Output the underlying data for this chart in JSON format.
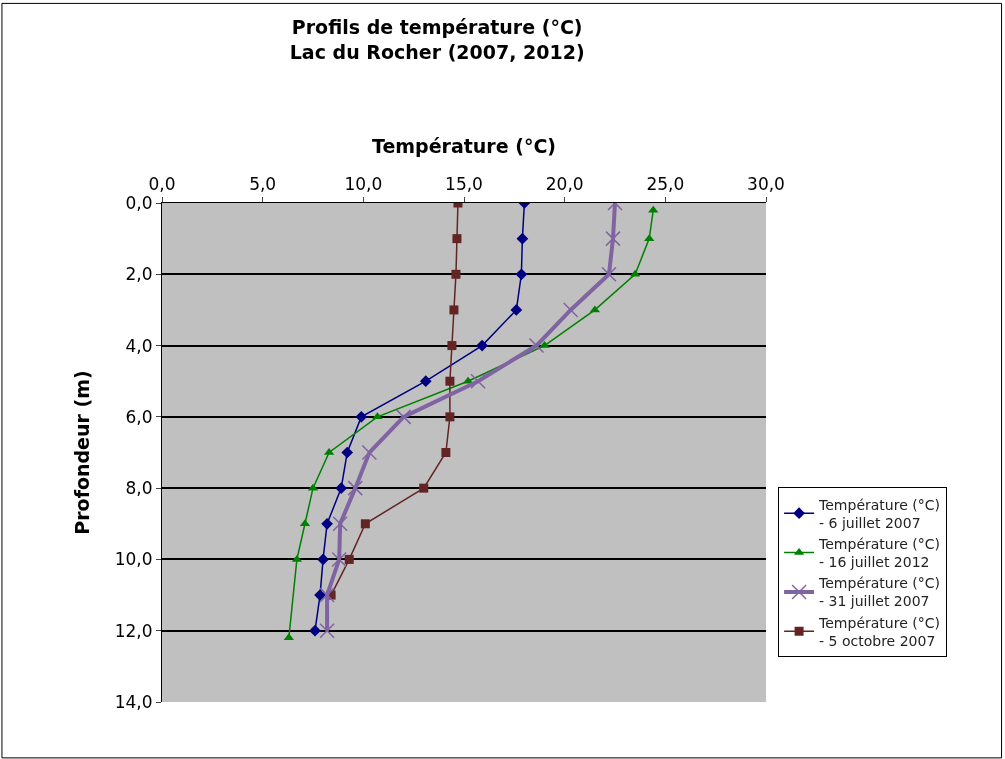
{
  "chart_data": {
    "type": "line",
    "title": "Profils de température (°C)\nLac du Rocher (2007, 2012)",
    "xlabel": "Température (°C)",
    "ylabel": "Profondeur (m)",
    "xlim": [
      0,
      30
    ],
    "xticks": [
      {
        "value": 0,
        "label": "0,0"
      },
      {
        "value": 5,
        "label": "5,0"
      },
      {
        "value": 10,
        "label": "10,0"
      },
      {
        "value": 15,
        "label": "15,0"
      },
      {
        "value": 20,
        "label": "20,0"
      },
      {
        "value": 25,
        "label": "25,0"
      },
      {
        "value": 30,
        "label": "30,0"
      }
    ],
    "ylim": [
      14,
      0
    ],
    "yticks": [
      {
        "value": 0,
        "label": "0,0"
      },
      {
        "value": 2,
        "label": "2,0"
      },
      {
        "value": 4,
        "label": "4,0"
      },
      {
        "value": 6,
        "label": "6,0"
      },
      {
        "value": 8,
        "label": "8,0"
      },
      {
        "value": 10,
        "label": "10,0"
      },
      {
        "value": 12,
        "label": "12,0"
      },
      {
        "value": 14,
        "label": "14,0"
      }
    ],
    "grid": "y",
    "legend": "right",
    "series": [
      {
        "name": "Température (°C)\n- 6 juillet 2007",
        "color": "#000080",
        "marker": "diamond",
        "x": [
          18.0,
          17.9,
          17.85,
          17.6,
          15.9,
          13.1,
          9.9,
          9.2,
          8.9,
          8.2,
          8.0,
          7.85,
          7.6
        ],
        "values": [
          0,
          1,
          2,
          3,
          4,
          5,
          6,
          7,
          8,
          9,
          10,
          11,
          12
        ]
      },
      {
        "name": "Température (°C)\n- 16 juillet 2012",
        "color": "#008000",
        "marker": "triangle",
        "x": [
          24.4,
          24.2,
          23.5,
          21.5,
          19.0,
          15.2,
          10.7,
          8.3,
          7.5,
          7.1,
          6.7,
          6.3
        ],
        "values": [
          0.2,
          1,
          2,
          3,
          4,
          5,
          6,
          7,
          8,
          9,
          10,
          12.2
        ]
      },
      {
        "name": "Température (°C)\n- 31 juillet 2007",
        "color": "#8064a2",
        "marker": "cross",
        "x": [
          22.5,
          22.4,
          22.2,
          20.3,
          18.6,
          15.7,
          12.0,
          10.3,
          9.6,
          8.85,
          8.8,
          8.2,
          8.2
        ],
        "values": [
          0,
          1,
          2,
          3,
          4,
          5,
          6,
          7,
          8,
          9,
          10,
          11,
          12
        ]
      },
      {
        "name": "Température (°C)\n- 5 octobre 2007",
        "color": "#632523",
        "marker": "square",
        "x": [
          14.7,
          14.65,
          14.6,
          14.5,
          14.4,
          14.3,
          14.3,
          14.1,
          13.0,
          10.1,
          9.3,
          8.4
        ],
        "values": [
          0,
          1,
          2,
          3,
          4,
          5,
          6,
          7,
          8,
          9,
          10,
          11
        ]
      }
    ]
  }
}
